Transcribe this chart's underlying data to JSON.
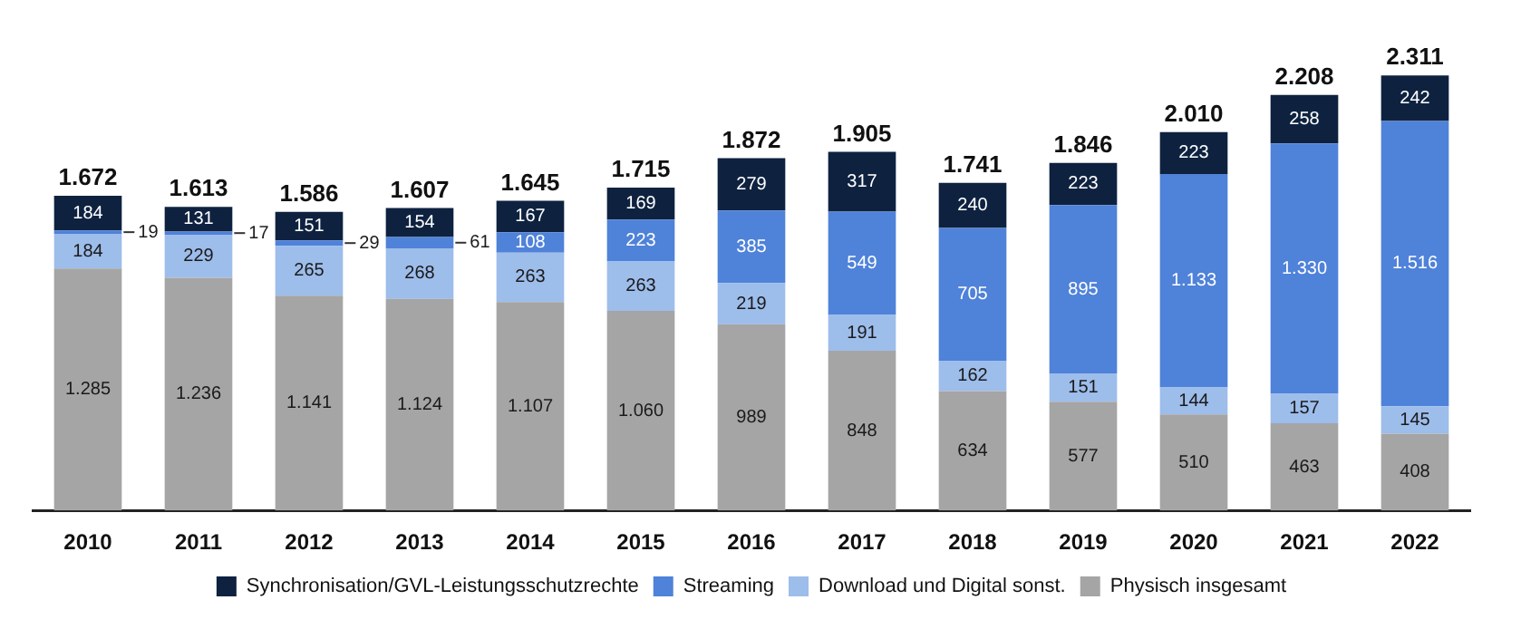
{
  "chart_data": {
    "type": "bar",
    "stacked": true,
    "legend": "bottom",
    "grid": false,
    "categories": [
      "2010",
      "2011",
      "2012",
      "2013",
      "2014",
      "2015",
      "2016",
      "2017",
      "2018",
      "2019",
      "2020",
      "2021",
      "2022"
    ],
    "series": [
      {
        "name": "Physisch insgesamt",
        "color": "#a5a5a5",
        "values": [
          1285,
          1236,
          1141,
          1124,
          1107,
          1060,
          989,
          848,
          634,
          577,
          510,
          463,
          408
        ],
        "value_labels": [
          "1.285",
          "1.236",
          "1.141",
          "1.124",
          "1.107",
          "1.060",
          "989",
          "848",
          "634",
          "577",
          "510",
          "463",
          "408"
        ]
      },
      {
        "name": "Download und Digital sonst.",
        "color": "#9dbdeb",
        "values": [
          184,
          229,
          265,
          268,
          263,
          263,
          219,
          191,
          162,
          151,
          144,
          157,
          145
        ],
        "value_labels": [
          "184",
          "229",
          "265",
          "268",
          "263",
          "263",
          "219",
          "191",
          "162",
          "151",
          "144",
          "157",
          "145"
        ]
      },
      {
        "name": "Streaming",
        "color": "#4f82d9",
        "values": [
          19,
          17,
          29,
          61,
          108,
          223,
          385,
          549,
          705,
          895,
          1133,
          1330,
          1516
        ],
        "value_labels": [
          "19",
          "17",
          "29",
          "61",
          "108",
          "223",
          "385",
          "549",
          "705",
          "895",
          "1.133",
          "1.330",
          "1.516"
        ]
      },
      {
        "name": "Synchronisation/GVL-Leistungsschutzrechte",
        "color": "#0e2240",
        "values": [
          184,
          131,
          151,
          154,
          167,
          169,
          279,
          317,
          240,
          223,
          223,
          258,
          242
        ],
        "value_labels": [
          "184",
          "131",
          "151",
          "154",
          "167",
          "169",
          "279",
          "317",
          "240",
          "223",
          "223",
          "258",
          "242"
        ]
      }
    ],
    "totals": [
      "1.672",
      "1.613",
      "1.586",
      "1.607",
      "1.645",
      "1.715",
      "1.872",
      "1.905",
      "1.741",
      "1.846",
      "2.010",
      "2.208",
      "2.311"
    ]
  }
}
